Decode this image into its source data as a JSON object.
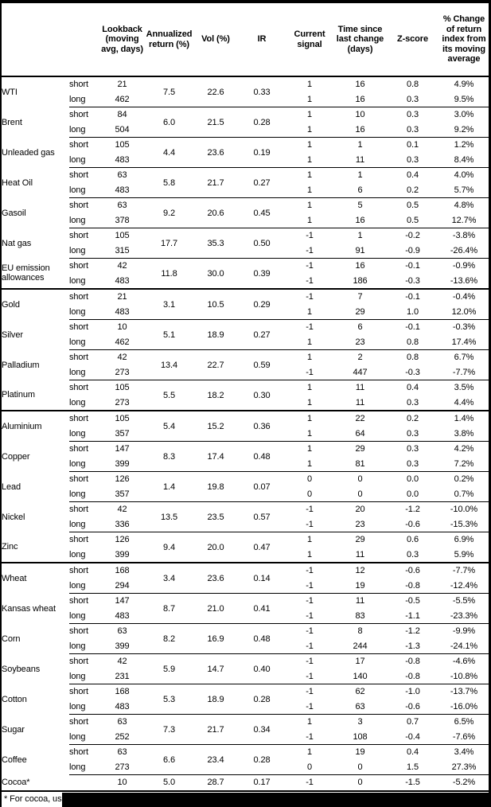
{
  "header": {
    "lookback": "Lookback (moving avg, days)",
    "annualized": "Annualized return (%)",
    "vol": "Vol (%)",
    "ir": "IR",
    "signal": "Current signal",
    "time_since": "Time since last change (days)",
    "zscore": "Z-score",
    "pct_change": "% Change of return index from its moving average"
  },
  "table": {
    "commodities": [
      {
        "name": "WTI",
        "section_start": false,
        "annualized": "7.5",
        "vol": "22.6",
        "ir": "0.33",
        "short": {
          "lookback": "21",
          "signal": "1",
          "time": "16",
          "z": "0.8",
          "pct": "4.9%"
        },
        "long": {
          "lookback": "462",
          "signal": "1",
          "time": "16",
          "z": "0.3",
          "pct": "9.5%"
        }
      },
      {
        "name": "Brent",
        "section_start": false,
        "annualized": "6.0",
        "vol": "21.5",
        "ir": "0.28",
        "short": {
          "lookback": "84",
          "signal": "1",
          "time": "10",
          "z": "0.3",
          "pct": "3.0%"
        },
        "long": {
          "lookback": "504",
          "signal": "1",
          "time": "16",
          "z": "0.3",
          "pct": "9.2%"
        }
      },
      {
        "name": "Unleaded gas",
        "section_start": false,
        "annualized": "4.4",
        "vol": "23.6",
        "ir": "0.19",
        "short": {
          "lookback": "105",
          "signal": "1",
          "time": "1",
          "z": "0.1",
          "pct": "1.2%"
        },
        "long": {
          "lookback": "483",
          "signal": "1",
          "time": "11",
          "z": "0.3",
          "pct": "8.4%"
        }
      },
      {
        "name": "Heat Oil",
        "section_start": false,
        "annualized": "5.8",
        "vol": "21.7",
        "ir": "0.27",
        "short": {
          "lookback": "63",
          "signal": "1",
          "time": "1",
          "z": "0.4",
          "pct": "4.0%"
        },
        "long": {
          "lookback": "483",
          "signal": "1",
          "time": "6",
          "z": "0.2",
          "pct": "5.7%"
        }
      },
      {
        "name": "Gasoil",
        "section_start": false,
        "annualized": "9.2",
        "vol": "20.6",
        "ir": "0.45",
        "short": {
          "lookback": "63",
          "signal": "1",
          "time": "5",
          "z": "0.5",
          "pct": "4.8%"
        },
        "long": {
          "lookback": "378",
          "signal": "1",
          "time": "16",
          "z": "0.5",
          "pct": "12.7%"
        }
      },
      {
        "name": "Nat gas",
        "section_start": false,
        "annualized": "17.7",
        "vol": "35.3",
        "ir": "0.50",
        "short": {
          "lookback": "105",
          "signal": "-1",
          "time": "1",
          "z": "-0.2",
          "pct": "-3.8%"
        },
        "long": {
          "lookback": "315",
          "signal": "-1",
          "time": "91",
          "z": "-0.9",
          "pct": "-26.4%"
        }
      },
      {
        "name": "EU emission allowances",
        "section_start": false,
        "annualized": "11.8",
        "vol": "30.0",
        "ir": "0.39",
        "short": {
          "lookback": "42",
          "signal": "-1",
          "time": "16",
          "z": "-0.1",
          "pct": "-0.9%"
        },
        "long": {
          "lookback": "483",
          "signal": "-1",
          "time": "186",
          "z": "-0.3",
          "pct": "-13.6%"
        }
      },
      {
        "name": "Gold",
        "section_start": true,
        "annualized": "3.1",
        "vol": "10.5",
        "ir": "0.29",
        "short": {
          "lookback": "21",
          "signal": "-1",
          "time": "7",
          "z": "-0.1",
          "pct": "-0.4%"
        },
        "long": {
          "lookback": "483",
          "signal": "1",
          "time": "29",
          "z": "1.0",
          "pct": "12.0%"
        }
      },
      {
        "name": "Silver",
        "section_start": false,
        "annualized": "5.1",
        "vol": "18.9",
        "ir": "0.27",
        "short": {
          "lookback": "10",
          "signal": "-1",
          "time": "6",
          "z": "-0.1",
          "pct": "-0.3%"
        },
        "long": {
          "lookback": "462",
          "signal": "1",
          "time": "23",
          "z": "0.8",
          "pct": "17.4%"
        }
      },
      {
        "name": "Palladium",
        "section_start": false,
        "annualized": "13.4",
        "vol": "22.7",
        "ir": "0.59",
        "short": {
          "lookback": "42",
          "signal": "1",
          "time": "2",
          "z": "0.8",
          "pct": "6.7%"
        },
        "long": {
          "lookback": "273",
          "signal": "-1",
          "time": "447",
          "z": "-0.3",
          "pct": "-7.7%"
        }
      },
      {
        "name": "Platinum",
        "section_start": false,
        "annualized": "5.5",
        "vol": "18.2",
        "ir": "0.30",
        "short": {
          "lookback": "105",
          "signal": "1",
          "time": "11",
          "z": "0.4",
          "pct": "3.5%"
        },
        "long": {
          "lookback": "273",
          "signal": "1",
          "time": "11",
          "z": "0.3",
          "pct": "4.4%"
        }
      },
      {
        "name": "Aluminium",
        "section_start": true,
        "annualized": "5.4",
        "vol": "15.2",
        "ir": "0.36",
        "short": {
          "lookback": "105",
          "signal": "1",
          "time": "22",
          "z": "0.2",
          "pct": "1.4%"
        },
        "long": {
          "lookback": "357",
          "signal": "1",
          "time": "64",
          "z": "0.3",
          "pct": "3.8%"
        }
      },
      {
        "name": "Copper",
        "section_start": false,
        "annualized": "8.3",
        "vol": "17.4",
        "ir": "0.48",
        "short": {
          "lookback": "147",
          "signal": "1",
          "time": "29",
          "z": "0.3",
          "pct": "4.2%"
        },
        "long": {
          "lookback": "399",
          "signal": "1",
          "time": "81",
          "z": "0.3",
          "pct": "7.2%"
        }
      },
      {
        "name": "Lead",
        "section_start": false,
        "annualized": "1.4",
        "vol": "19.8",
        "ir": "0.07",
        "short": {
          "lookback": "126",
          "signal": "0",
          "time": "0",
          "z": "0.0",
          "pct": "0.2%"
        },
        "long": {
          "lookback": "357",
          "signal": "0",
          "time": "0",
          "z": "0.0",
          "pct": "0.7%"
        }
      },
      {
        "name": "Nickel",
        "section_start": false,
        "annualized": "13.5",
        "vol": "23.5",
        "ir": "0.57",
        "short": {
          "lookback": "42",
          "signal": "-1",
          "time": "20",
          "z": "-1.2",
          "pct": "-10.0%"
        },
        "long": {
          "lookback": "336",
          "signal": "-1",
          "time": "23",
          "z": "-0.6",
          "pct": "-15.3%"
        }
      },
      {
        "name": "Zinc",
        "section_start": false,
        "annualized": "9.4",
        "vol": "20.0",
        "ir": "0.47",
        "short": {
          "lookback": "126",
          "signal": "1",
          "time": "29",
          "z": "0.6",
          "pct": "6.9%"
        },
        "long": {
          "lookback": "399",
          "signal": "1",
          "time": "11",
          "z": "0.3",
          "pct": "5.9%"
        }
      },
      {
        "name": "Wheat",
        "section_start": true,
        "annualized": "3.4",
        "vol": "23.6",
        "ir": "0.14",
        "short": {
          "lookback": "168",
          "signal": "-1",
          "time": "12",
          "z": "-0.6",
          "pct": "-7.7%"
        },
        "long": {
          "lookback": "294",
          "signal": "-1",
          "time": "19",
          "z": "-0.8",
          "pct": "-12.4%"
        }
      },
      {
        "name": "Kansas wheat",
        "section_start": false,
        "annualized": "8.7",
        "vol": "21.0",
        "ir": "0.41",
        "short": {
          "lookback": "147",
          "signal": "-1",
          "time": "11",
          "z": "-0.5",
          "pct": "-5.5%"
        },
        "long": {
          "lookback": "483",
          "signal": "-1",
          "time": "83",
          "z": "-1.1",
          "pct": "-23.3%"
        }
      },
      {
        "name": "Corn",
        "section_start": false,
        "annualized": "8.2",
        "vol": "16.9",
        "ir": "0.48",
        "short": {
          "lookback": "63",
          "signal": "-1",
          "time": "8",
          "z": "-1.2",
          "pct": "-9.9%"
        },
        "long": {
          "lookback": "399",
          "signal": "-1",
          "time": "244",
          "z": "-1.3",
          "pct": "-24.1%"
        }
      },
      {
        "name": "Soybeans",
        "section_start": false,
        "annualized": "5.9",
        "vol": "14.7",
        "ir": "0.40",
        "short": {
          "lookback": "42",
          "signal": "-1",
          "time": "17",
          "z": "-0.8",
          "pct": "-4.6%"
        },
        "long": {
          "lookback": "231",
          "signal": "-1",
          "time": "140",
          "z": "-0.8",
          "pct": "-10.8%"
        }
      },
      {
        "name": "Cotton",
        "section_start": false,
        "annualized": "5.3",
        "vol": "18.9",
        "ir": "0.28",
        "short": {
          "lookback": "168",
          "signal": "-1",
          "time": "62",
          "z": "-1.0",
          "pct": "-13.7%"
        },
        "long": {
          "lookback": "483",
          "signal": "-1",
          "time": "63",
          "z": "-0.6",
          "pct": "-16.0%"
        }
      },
      {
        "name": "Sugar",
        "section_start": false,
        "annualized": "7.3",
        "vol": "21.7",
        "ir": "0.34",
        "short": {
          "lookback": "63",
          "signal": "1",
          "time": "3",
          "z": "0.7",
          "pct": "6.5%"
        },
        "long": {
          "lookback": "252",
          "signal": "-1",
          "time": "108",
          "z": "-0.4",
          "pct": "-7.6%"
        }
      },
      {
        "name": "Coffee",
        "section_start": false,
        "annualized": "6.6",
        "vol": "23.4",
        "ir": "0.28",
        "short": {
          "lookback": "63",
          "signal": "1",
          "time": "19",
          "z": "0.4",
          "pct": "3.4%"
        },
        "long": {
          "lookback": "273",
          "signal": "0",
          "time": "0",
          "z": "1.5",
          "pct": "27.3%"
        }
      },
      {
        "name": "Cocoa*",
        "section_start": false,
        "single": true,
        "annualized": "5.0",
        "vol": "28.7",
        "ir": "0.17",
        "row": {
          "lookback": "10",
          "signal": "-1",
          "time": "0",
          "z": "-1.5",
          "pct": "-5.2%"
        }
      }
    ],
    "row_types": {
      "short_label": "short",
      "long_label": "long"
    }
  },
  "footnote": {
    "text": "* For cocoa, uses c"
  }
}
